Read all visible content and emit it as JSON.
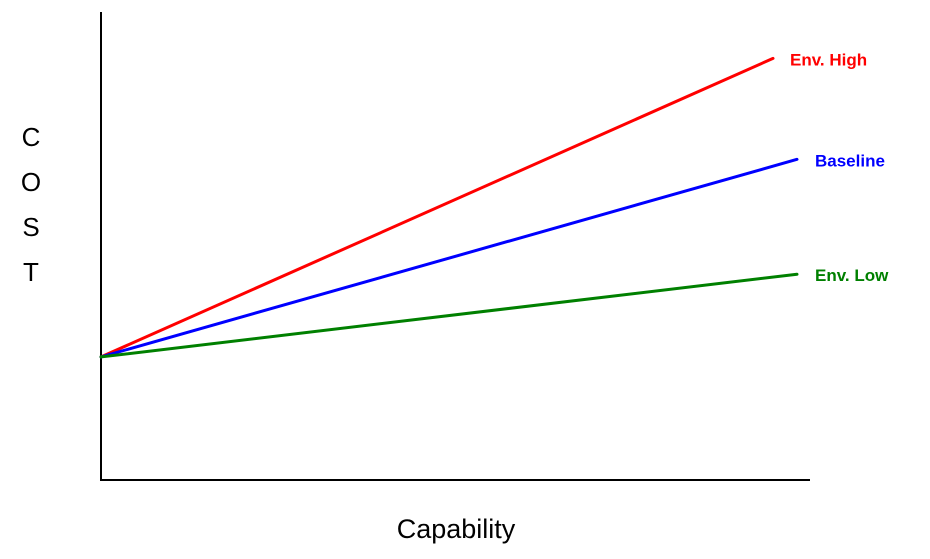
{
  "chart_data": {
    "type": "line",
    "title": "",
    "xlabel": "Capability",
    "ylabel": "COST",
    "grid": false,
    "legend": "inline labels at line ends",
    "xlim": [
      0,
      1
    ],
    "ylim": [
      0,
      1
    ],
    "x": [
      0,
      1
    ],
    "series": [
      {
        "name": "Env. High",
        "color": "#ff0000",
        "values": [
          0.263,
          0.936
        ]
      },
      {
        "name": "Baseline",
        "color": "#0000ff",
        "values": [
          0.263,
          0.693
        ]
      },
      {
        "name": "Env. Low",
        "color": "#008000",
        "values": [
          0.263,
          0.443
        ]
      }
    ]
  }
}
